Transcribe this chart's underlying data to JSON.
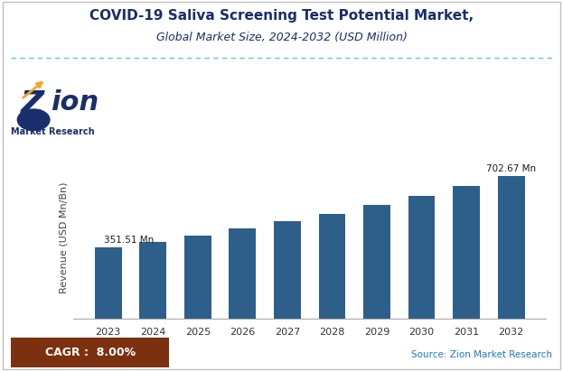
{
  "title_line1": "COVID-19 Saliva Screening Test Potential Market,",
  "title_line2": "Global Market Size, 2024-2032 (USD Million)",
  "years": [
    2023,
    2024,
    2025,
    2026,
    2027,
    2028,
    2029,
    2030,
    2031,
    2032
  ],
  "values": [
    351.51,
    379.63,
    410.0,
    442.8,
    478.22,
    516.48,
    557.8,
    602.42,
    650.61,
    702.67
  ],
  "bar_color": "#2e5f8a",
  "ylabel": "Revenue (USD Mn/Bn)",
  "first_label": "351.51 Mn",
  "last_label": "702.67 Mn",
  "cagr_text": "CAGR :  8.00%",
  "cagr_box_color": "#7B3010",
  "cagr_text_color": "#ffffff",
  "source_text": "Source: Zion Market Research",
  "source_color": "#1a7abf",
  "background_color": "#ffffff",
  "title_color": "#1a2e6b",
  "subtitle_color": "#1a2e6b",
  "ylim": [
    0,
    800
  ],
  "dashed_line_color": "#5bc8f5",
  "border_color": "#c0c0c0"
}
